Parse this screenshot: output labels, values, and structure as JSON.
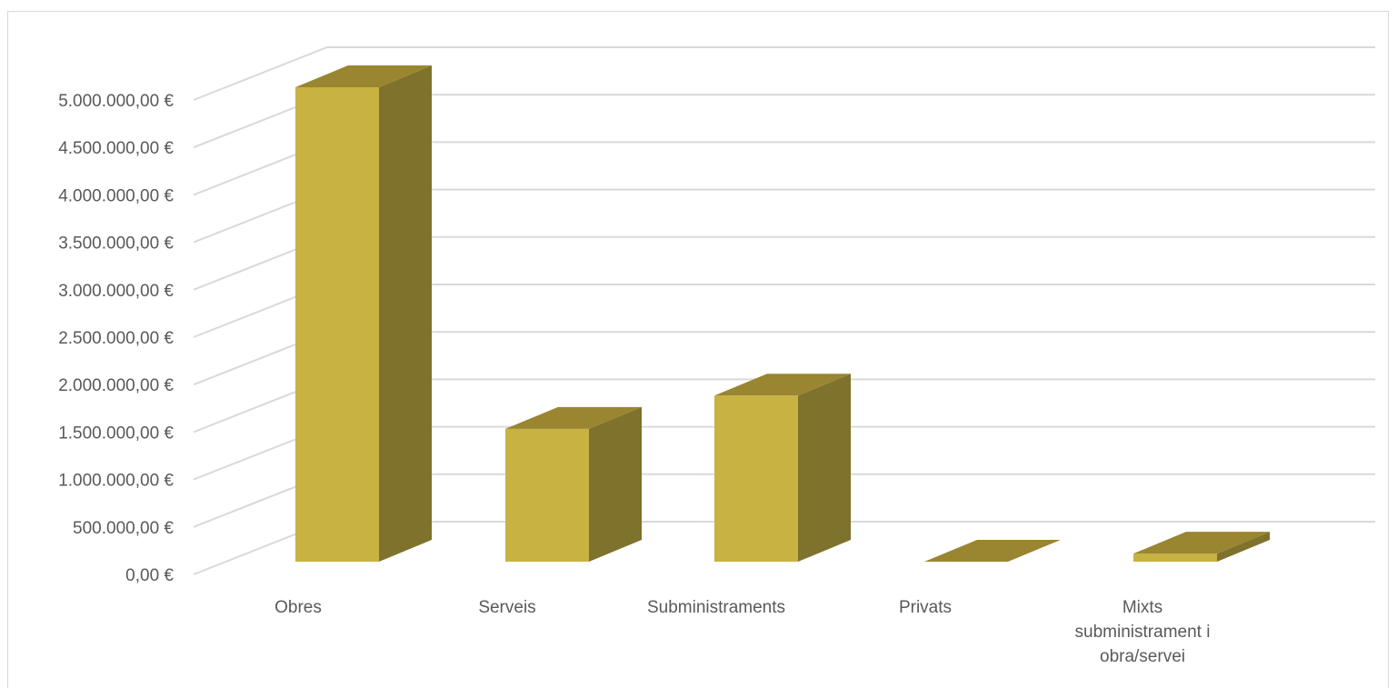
{
  "chart_data": {
    "type": "bar",
    "style": "3d-column",
    "categories": [
      [
        "Obres"
      ],
      [
        "Serveis"
      ],
      [
        "Subministraments"
      ],
      [
        "Privats"
      ],
      [
        "Mixts",
        "subministrament i",
        "obra/servei"
      ]
    ],
    "values": [
      5000000,
      1400000,
      1750000,
      0,
      85000
    ],
    "y_ticks": [
      "0,00 €",
      "500.000,00 €",
      "1.000.000,00 €",
      "1.500.000,00 €",
      "2.000.000,00 €",
      "2.500.000,00 €",
      "3.000.000,00 €",
      "3.500.000,00 €",
      "4.000.000,00 €",
      "4.500.000,00 €",
      "5.000.000,00 €"
    ],
    "ylim": [
      0,
      5000000
    ],
    "grid": true,
    "legend": "none",
    "colors": {
      "front": "#c8b242",
      "side": "#7e722c",
      "top": "#9a8530",
      "grid": "#d9d9d9",
      "text": "#595959"
    }
  }
}
